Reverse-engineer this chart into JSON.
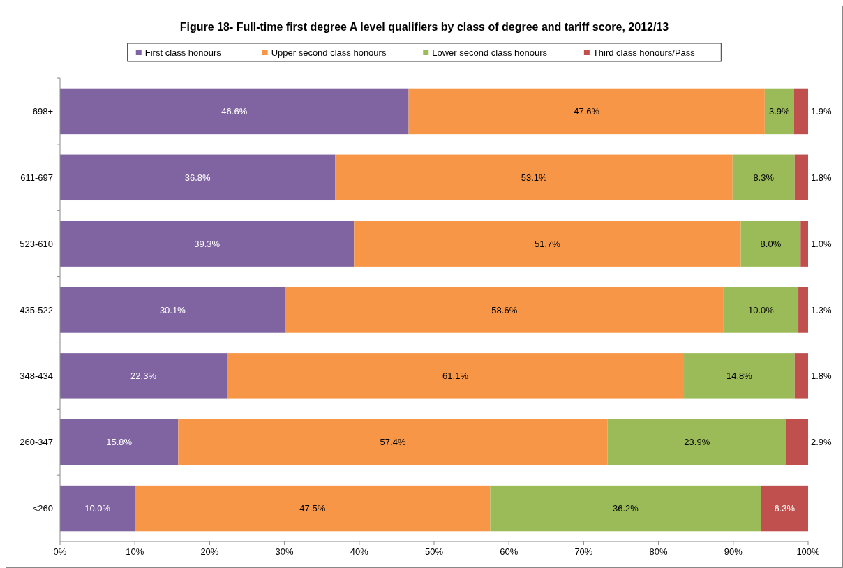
{
  "chart_data": {
    "type": "bar",
    "orientation": "horizontal",
    "stacked": true,
    "title": "Figure 18- Full-time first degree A level qualifiers by class of degree and tariff score, 2012/13",
    "categories": [
      "698+",
      "611-697",
      "523-610",
      "435-522",
      "348-434",
      "260-347",
      "<260"
    ],
    "series": [
      {
        "name": "First class honours",
        "color": "#8064a2",
        "values": [
          46.6,
          36.8,
          39.3,
          30.1,
          22.3,
          15.8,
          10.0
        ],
        "value_labels": [
          "46.6%",
          "36.8%",
          "39.3%",
          "30.1%",
          "22.3%",
          "15.8%",
          "10.0%"
        ]
      },
      {
        "name": "Upper second class honours",
        "color": "#f79646",
        "values": [
          47.6,
          53.1,
          51.7,
          58.6,
          61.1,
          57.4,
          47.5
        ],
        "value_labels": [
          "47.6%",
          "53.1%",
          "51.7%",
          "58.6%",
          "61.1%",
          "57.4%",
          "47.5%"
        ]
      },
      {
        "name": "Lower second class honours",
        "color": "#9bbb59",
        "values": [
          3.9,
          8.3,
          8.0,
          10.0,
          14.8,
          23.9,
          36.2
        ],
        "value_labels": [
          "3.9%",
          "8.3%",
          "8.0%",
          "10.0%",
          "14.8%",
          "23.9%",
          "36.2%"
        ]
      },
      {
        "name": "Third class honours/Pass",
        "color": "#c0504d",
        "values": [
          1.9,
          1.8,
          1.0,
          1.3,
          1.8,
          2.9,
          6.3
        ],
        "value_labels": [
          "1.9%",
          "1.8%",
          "1.0%",
          "1.3%",
          "1.8%",
          "2.9%",
          "6.3%"
        ]
      }
    ],
    "xlim": [
      0,
      100
    ],
    "xticks": [
      {
        "value": 0,
        "label": "0%"
      },
      {
        "value": 10,
        "label": "10%"
      },
      {
        "value": 20,
        "label": "20%"
      },
      {
        "value": 30,
        "label": "30%"
      },
      {
        "value": 40,
        "label": "40%"
      },
      {
        "value": 50,
        "label": "50%"
      },
      {
        "value": 60,
        "label": "60%"
      },
      {
        "value": 70,
        "label": "70%"
      },
      {
        "value": 80,
        "label": "80%"
      },
      {
        "value": 90,
        "label": "90%"
      },
      {
        "value": 100,
        "label": "100%"
      }
    ],
    "grid": false,
    "legend": "top"
  }
}
